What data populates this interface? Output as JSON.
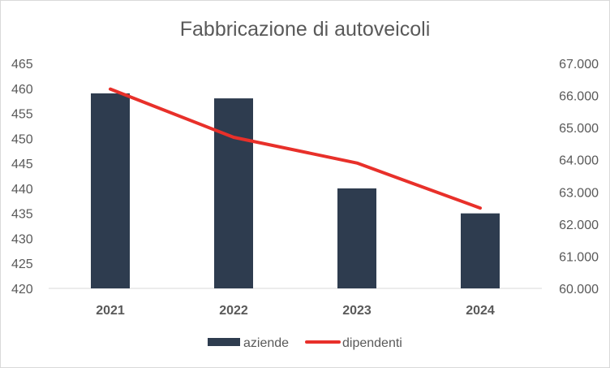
{
  "chart_data": {
    "type": "bar",
    "title": "Fabbricazione di autoveicoli",
    "categories": [
      "2021",
      "2022",
      "2023",
      "2024"
    ],
    "series": [
      {
        "name": "aziende",
        "type": "bar",
        "axis": "left",
        "values": [
          459,
          458,
          440,
          435
        ],
        "color": "#2e3c4f"
      },
      {
        "name": "dipendenti",
        "type": "line",
        "axis": "right",
        "values": [
          66200,
          64700,
          63900,
          62500
        ],
        "color": "#e8302a"
      }
    ],
    "y_left": {
      "min": 420,
      "max": 465,
      "step": 5,
      "tick_labels": [
        "420",
        "425",
        "430",
        "435",
        "440",
        "445",
        "450",
        "455",
        "460",
        "465"
      ]
    },
    "y_right": {
      "min": 60000,
      "max": 67000,
      "step": 1000,
      "tick_labels": [
        "60.000",
        "61.000",
        "62.000",
        "63.000",
        "64.000",
        "65.000",
        "66.000",
        "67.000"
      ]
    },
    "grid": false,
    "legend_position": "bottom"
  }
}
